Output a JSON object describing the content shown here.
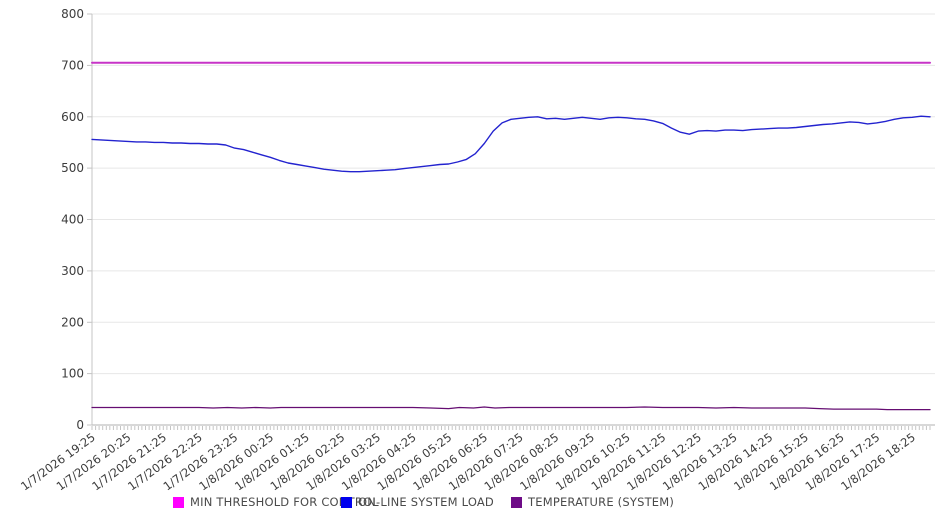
{
  "chart_data": {
    "type": "line",
    "title": "",
    "xlabel": "",
    "ylabel": "",
    "ylim": [
      0,
      800
    ],
    "y_ticks": [
      800,
      700,
      600,
      500,
      400,
      300,
      200,
      100,
      0
    ],
    "x_hours_span": 23.5,
    "x_tick_interval_hours": 1,
    "minor_tick_interval_hours": 0.1,
    "grid": "horizontal",
    "legend_position": "bottom",
    "x_labels": [
      "1/7/2026 19:25",
      "1/7/2026 20:25",
      "1/7/2026 21:25",
      "1/7/2026 22:25",
      "1/7/2026 23:25",
      "1/8/2026 00:25",
      "1/8/2026 01:25",
      "1/8/2026 02:25",
      "1/8/2026 03:25",
      "1/8/2026 04:25",
      "1/8/2026 05:25",
      "1/8/2026 06:25",
      "1/8/2026 07:25",
      "1/8/2026 08:25",
      "1/8/2026 09:25",
      "1/8/2026 10:25",
      "1/8/2026 11:25",
      "1/8/2026 12:25",
      "1/8/2026 13:25",
      "1/8/2026 14:25",
      "1/8/2026 15:25",
      "1/8/2026 16:25",
      "1/8/2026 17:25",
      "1/8/2026 18:25"
    ],
    "series": [
      {
        "name": "MIN THRESHOLD FOR CONTROL",
        "line_color": "#c733c7",
        "swatch_color": "#ff00ff",
        "line_width": 2,
        "points": [
          [
            0,
            705
          ],
          [
            23.5,
            705
          ]
        ]
      },
      {
        "name": "ON-LINE SYSTEM LOAD",
        "line_color": "#2323cf",
        "swatch_color": "#0000ee",
        "line_width": 1.4,
        "start_hour": 0,
        "step_hours": 0.25,
        "values": [
          556,
          555,
          554,
          553,
          552,
          551,
          551,
          550,
          550,
          549,
          549,
          548,
          548,
          547,
          547,
          545,
          539,
          536,
          531,
          526,
          521,
          515,
          510,
          507,
          504,
          501,
          498,
          496,
          494,
          493,
          493,
          494,
          495,
          496,
          497,
          499,
          501,
          503,
          505,
          507,
          508,
          512,
          517,
          528,
          548,
          572,
          588,
          595,
          597,
          599,
          600,
          596,
          597,
          595,
          597,
          599,
          597,
          595,
          598,
          599,
          598,
          596,
          595,
          592,
          587,
          578,
          570,
          566,
          572,
          573,
          572,
          574,
          574,
          573,
          575,
          576,
          577,
          578,
          578,
          579,
          581,
          583,
          585,
          586,
          588,
          590,
          589,
          586,
          588,
          591,
          595,
          598,
          599,
          601,
          600
        ]
      },
      {
        "name": "TEMPERATURE (SYSTEM)",
        "line_color": "#650d72",
        "swatch_color": "#6e0b87",
        "line_width": 1.3,
        "points": [
          [
            0,
            34
          ],
          [
            0.5,
            34
          ],
          [
            1,
            34
          ],
          [
            1.5,
            34
          ],
          [
            2,
            34
          ],
          [
            2.5,
            34
          ],
          [
            3,
            34
          ],
          [
            3.4,
            33
          ],
          [
            3.8,
            34
          ],
          [
            4.2,
            33
          ],
          [
            4.6,
            34
          ],
          [
            5,
            33
          ],
          [
            5.3,
            34
          ],
          [
            6,
            34
          ],
          [
            6.5,
            34
          ],
          [
            7,
            34
          ],
          [
            7.5,
            34
          ],
          [
            8,
            34
          ],
          [
            8.5,
            34
          ],
          [
            9,
            34
          ],
          [
            9.5,
            33
          ],
          [
            10,
            32
          ],
          [
            10.3,
            34
          ],
          [
            10.7,
            33
          ],
          [
            11,
            35
          ],
          [
            11.3,
            33
          ],
          [
            11.7,
            34
          ],
          [
            12,
            34
          ],
          [
            12.5,
            34
          ],
          [
            13,
            34
          ],
          [
            13.5,
            34
          ],
          [
            14,
            34
          ],
          [
            14.5,
            34
          ],
          [
            15,
            34
          ],
          [
            15.5,
            35
          ],
          [
            16,
            34
          ],
          [
            16.5,
            34
          ],
          [
            17,
            34
          ],
          [
            17.5,
            33
          ],
          [
            18,
            34
          ],
          [
            18.5,
            33
          ],
          [
            19,
            33
          ],
          [
            19.5,
            33
          ],
          [
            20,
            33
          ],
          [
            20.4,
            32
          ],
          [
            20.8,
            31
          ],
          [
            21.5,
            31
          ],
          [
            22,
            31
          ],
          [
            22.3,
            30
          ],
          [
            23,
            30
          ],
          [
            23.5,
            30
          ]
        ]
      }
    ]
  }
}
